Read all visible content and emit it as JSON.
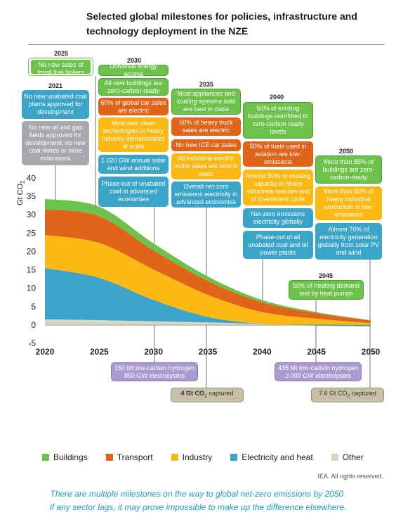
{
  "title": "Selected global milestones for policies, infrastructure and technology deployment in the NZE",
  "yaxis_label_main": "Gt CO",
  "yaxis_label_sub": "2",
  "colors": {
    "Buildings": "#6cc24a",
    "Transport": "#e1641b",
    "Industry": "#fcb813",
    "Electricity and heat": "#3aa5c8",
    "Other": "#d9d5c3"
  },
  "milestones": {
    "y2025_year": "2025",
    "y2025_a": "No new sales of fossil fuel boilers",
    "y2021_year": "2021",
    "y2021_a": "No new unabated coal plants approved for development",
    "y2021_b": "No new oil and gas fields approved for development; no new coal mines or mine extensions",
    "y2030_year": "2030",
    "y2030_a": "Universal energy access",
    "y2030_b": "All new buildings are zero-carbon-ready",
    "y2030_c": "60% of global car sales are electric",
    "y2030_d": "Most new clean technologies in heavy industry demonstrated at scale",
    "y2030_e": "1 020 GW annual solar and wind additions",
    "y2030_f": "Phase-out of unabated coal in advanced economies",
    "y2035_year": "2035",
    "y2035_a": "Most appliances and cooling systems sold are best in class",
    "y2035_b": "50% of heavy truck sales are electric",
    "y2035_c": "No new ICE car sales",
    "y2035_d": "All industrial electric motor sales are best in class",
    "y2035_e": "Overall net-zero emissions electricity in advanced economies",
    "y2040_year": "2040",
    "y2040_a": "50% of existing buildings retrofitted to zero-carbon-ready levels",
    "y2040_b": "50% of fuels used in aviation are low-emissions",
    "y2040_c": "Around 90% of existing capacity in heavy industries reaches end of investment cycle",
    "y2040_d": "Net-zero emissions electricity globally",
    "y2040_e": "Phase-out of all unabated coal and oil power plants",
    "y2045_year": "2045",
    "y2045_a": "50% of heating demand met by heat pumps",
    "y2050_year": "2050",
    "y2050_a": "More than 85% of buildings are zero-carbon-ready",
    "y2050_b": "More than 90% of heavy industrial production is low-emissions",
    "y2050_c": "Almost 70% of electricity generation globally from solar PV and wind",
    "h2_2030": "150 Mt low-carbon hydrogen 850 GW electrolysers",
    "h2_2050": "435 Mt low-carbon hydrogen 3 000 GW electrolysers",
    "ccs_2035_a": "4 Gt CO",
    "ccs_2035_b": "2",
    "ccs_2035_c": " captured",
    "ccs_2050_a": "7.6 Gt CO",
    "ccs_2050_b": "2",
    "ccs_2050_c": " captured"
  },
  "legend": {
    "buildings": "Buildings",
    "transport": "Transport",
    "industry": "Industry",
    "electricity": "Electricity and heat",
    "other": "Other"
  },
  "credit": "IEA. All rights reserved.",
  "caption_line1": "There are multiple milestones on the way to global net-zero emissions by 2050.",
  "caption_line2": "If any sector lags, it may prove impossible to make up the difference elsewhere.",
  "chart_data": {
    "type": "area",
    "stacked": true,
    "x": [
      2020,
      2025,
      2030,
      2035,
      2040,
      2045,
      2050
    ],
    "ylim": [
      -5,
      40
    ],
    "yticks": [
      -5,
      0,
      5,
      10,
      15,
      20,
      25,
      30,
      35,
      40
    ],
    "ylabel": "Gt CO2",
    "series": [
      {
        "name": "Other",
        "values": [
          1.5,
          1.3,
          1.0,
          0.7,
          0.3,
          0.1,
          0.0
        ]
      },
      {
        "name": "Electricity and heat",
        "values": [
          14.0,
          11.5,
          5.8,
          1.5,
          0.0,
          -0.3,
          -0.4
        ]
      },
      {
        "name": "Industry",
        "values": [
          9.0,
          9.5,
          8.3,
          6.0,
          3.2,
          1.6,
          0.5
        ]
      },
      {
        "name": "Transport",
        "values": [
          7.0,
          7.3,
          5.2,
          3.8,
          2.7,
          1.5,
          0.7
        ]
      },
      {
        "name": "Buildings",
        "values": [
          2.8,
          2.6,
          1.9,
          1.2,
          0.6,
          0.3,
          0.1
        ]
      }
    ]
  }
}
